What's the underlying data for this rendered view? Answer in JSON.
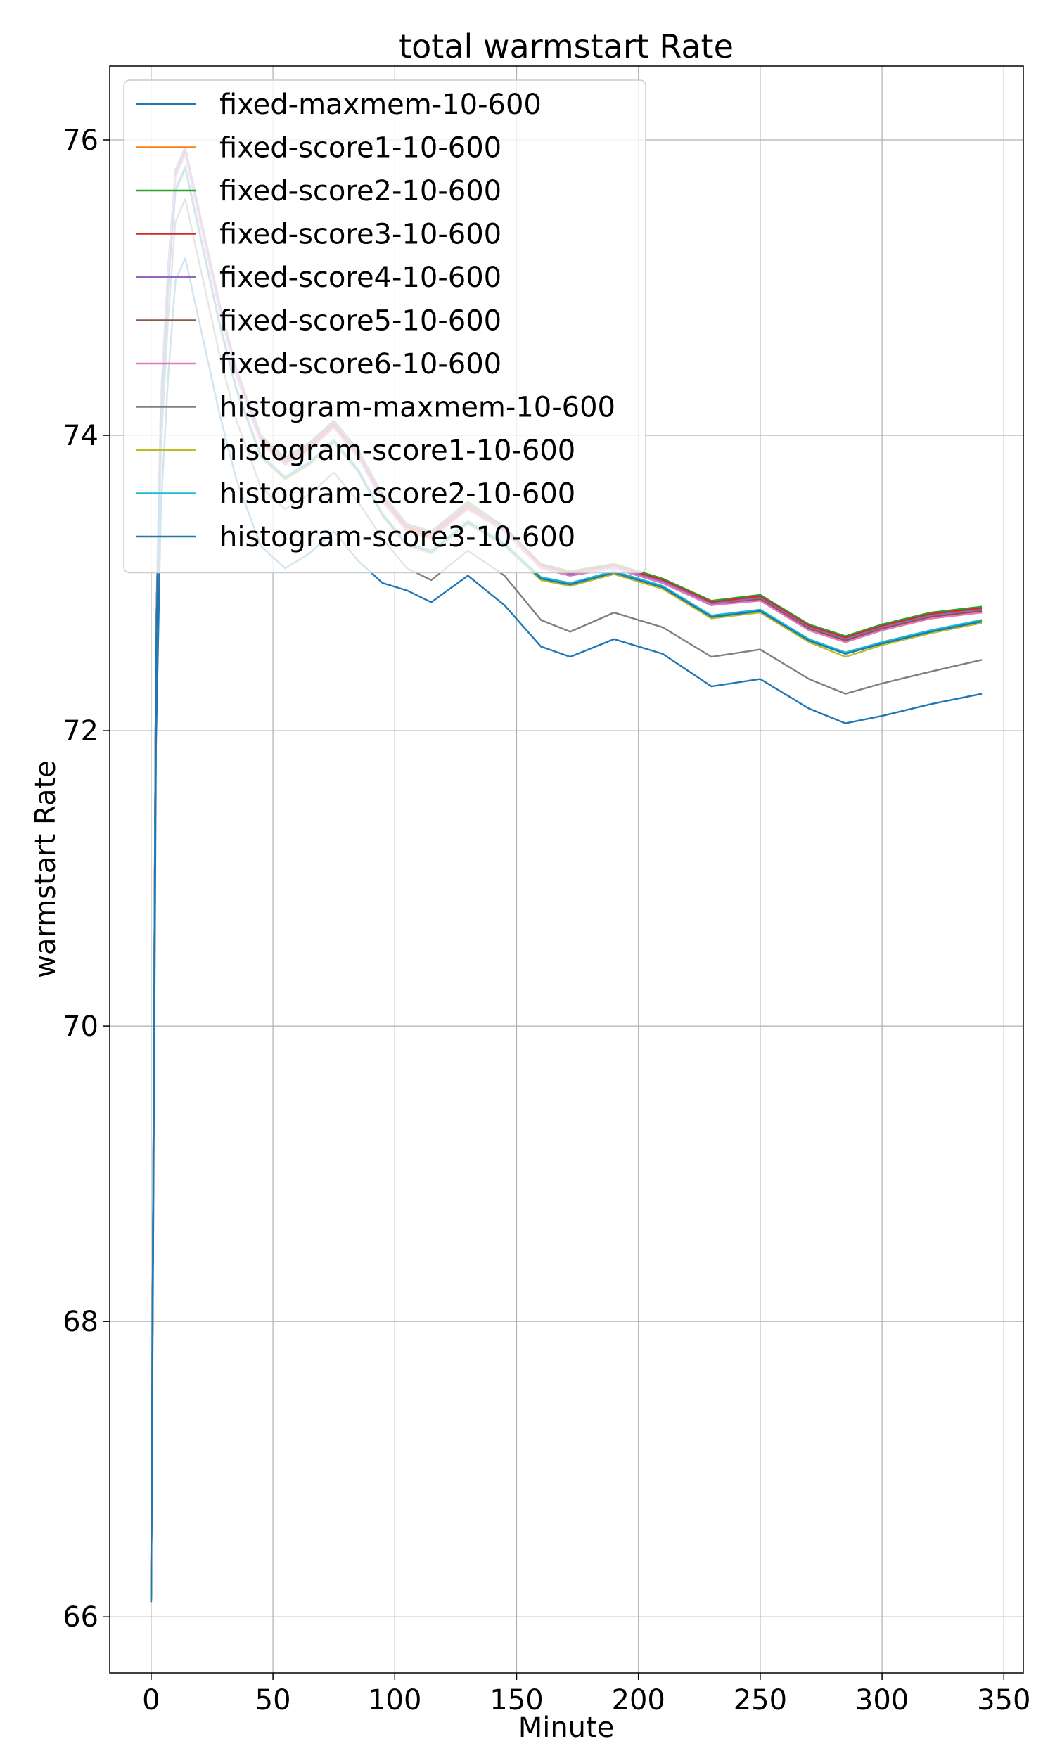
{
  "chart_data": {
    "type": "line",
    "title": "total warmstart Rate",
    "xlabel": "Minute",
    "ylabel": "warmstart Rate",
    "xlim": [
      -17,
      358
    ],
    "ylim": [
      65.62,
      76.5
    ],
    "xticks": [
      0,
      50,
      100,
      150,
      200,
      250,
      300,
      350
    ],
    "yticks": [
      66,
      68,
      70,
      72,
      74,
      76
    ],
    "grid": true,
    "legend_position": "upper left",
    "series": [
      {
        "name": "fixed-maxmem-10-600",
        "color": "#1f77b4",
        "x": [
          0,
          2,
          4,
          7,
          10,
          14,
          18,
          22,
          28,
          35,
          45,
          55,
          65,
          75,
          85,
          95,
          105,
          115,
          130,
          145,
          160,
          172,
          190,
          210,
          230,
          250,
          270,
          285,
          300,
          320,
          341
        ],
        "y": [
          66.1,
          72.6,
          74.2,
          75.1,
          75.75,
          75.9,
          75.6,
          75.3,
          74.85,
          74.4,
          73.95,
          73.8,
          73.9,
          74.05,
          73.85,
          73.55,
          73.35,
          73.3,
          73.5,
          73.35,
          73.1,
          73.05,
          73.1,
          73.0,
          72.85,
          72.9,
          72.7,
          72.62,
          72.7,
          72.78,
          72.82
        ]
      },
      {
        "name": "fixed-score1-10-600",
        "color": "#ff7f0e",
        "x": [
          0,
          2,
          4,
          7,
          10,
          14,
          18,
          22,
          28,
          35,
          45,
          55,
          65,
          75,
          85,
          95,
          105,
          115,
          130,
          145,
          160,
          172,
          190,
          210,
          230,
          250,
          270,
          285,
          300,
          320,
          341
        ],
        "y": [
          66.12,
          72.62,
          74.22,
          75.12,
          75.77,
          75.92,
          75.62,
          75.32,
          74.87,
          74.42,
          73.97,
          73.82,
          73.92,
          74.07,
          73.87,
          73.57,
          73.37,
          73.32,
          73.52,
          73.36,
          73.11,
          73.06,
          73.11,
          73.01,
          72.86,
          72.89,
          72.68,
          72.6,
          72.68,
          72.76,
          72.8
        ]
      },
      {
        "name": "fixed-score2-10-600",
        "color": "#2ca02c",
        "x": [
          0,
          2,
          4,
          7,
          10,
          14,
          18,
          22,
          28,
          35,
          45,
          55,
          65,
          75,
          85,
          95,
          105,
          115,
          130,
          145,
          160,
          172,
          190,
          210,
          230,
          250,
          270,
          285,
          300,
          320,
          341
        ],
        "y": [
          66.15,
          72.65,
          74.25,
          75.15,
          75.8,
          75.95,
          75.65,
          75.35,
          74.9,
          74.45,
          74.0,
          73.85,
          73.95,
          74.1,
          73.9,
          73.6,
          73.4,
          73.35,
          73.55,
          73.38,
          73.13,
          73.08,
          73.13,
          73.03,
          72.88,
          72.92,
          72.72,
          72.64,
          72.72,
          72.8,
          72.84
        ]
      },
      {
        "name": "fixed-score3-10-600",
        "color": "#d62728",
        "x": [
          0,
          2,
          4,
          7,
          10,
          14,
          18,
          22,
          28,
          35,
          45,
          55,
          65,
          75,
          85,
          95,
          105,
          115,
          130,
          145,
          160,
          172,
          190,
          210,
          230,
          250,
          270,
          285,
          300,
          320,
          341
        ],
        "y": [
          66.13,
          72.63,
          74.23,
          75.13,
          75.78,
          75.93,
          75.63,
          75.33,
          74.88,
          74.43,
          73.98,
          73.83,
          73.93,
          74.08,
          73.88,
          73.58,
          73.38,
          73.33,
          73.53,
          73.37,
          73.12,
          73.07,
          73.12,
          73.02,
          72.87,
          72.91,
          72.71,
          72.63,
          72.71,
          72.79,
          72.83
        ]
      },
      {
        "name": "fixed-score4-10-600",
        "color": "#9467bd",
        "x": [
          0,
          2,
          4,
          7,
          10,
          14,
          18,
          22,
          28,
          35,
          45,
          55,
          65,
          75,
          85,
          95,
          105,
          115,
          130,
          145,
          160,
          172,
          190,
          210,
          230,
          250,
          270,
          285,
          300,
          320,
          341
        ],
        "y": [
          66.14,
          72.64,
          74.24,
          75.14,
          75.79,
          75.94,
          75.64,
          75.34,
          74.89,
          74.44,
          73.99,
          73.84,
          73.94,
          74.09,
          73.89,
          73.59,
          73.39,
          73.34,
          73.54,
          73.36,
          73.11,
          73.06,
          73.11,
          73.01,
          72.86,
          72.9,
          72.7,
          72.62,
          72.7,
          72.78,
          72.82
        ]
      },
      {
        "name": "fixed-score5-10-600",
        "color": "#8c564b",
        "x": [
          0,
          2,
          4,
          7,
          10,
          14,
          18,
          22,
          28,
          35,
          45,
          55,
          65,
          75,
          85,
          95,
          105,
          115,
          130,
          145,
          160,
          172,
          190,
          210,
          230,
          250,
          270,
          285,
          300,
          320,
          341
        ],
        "y": [
          66.11,
          72.61,
          74.21,
          75.11,
          75.76,
          75.91,
          75.61,
          75.31,
          74.86,
          74.41,
          73.96,
          73.81,
          73.91,
          74.06,
          73.86,
          73.56,
          73.36,
          73.31,
          73.51,
          73.35,
          73.1,
          73.05,
          73.1,
          73.0,
          72.85,
          72.89,
          72.69,
          72.61,
          72.69,
          72.77,
          72.81
        ]
      },
      {
        "name": "fixed-score6-10-600",
        "color": "#e377c2",
        "x": [
          0,
          2,
          4,
          7,
          10,
          14,
          18,
          22,
          28,
          35,
          45,
          55,
          65,
          75,
          85,
          95,
          105,
          115,
          130,
          145,
          160,
          172,
          190,
          210,
          230,
          250,
          270,
          285,
          300,
          320,
          341
        ],
        "y": [
          66.3,
          72.6,
          74.2,
          75.1,
          75.75,
          75.9,
          75.6,
          75.3,
          74.85,
          74.4,
          73.95,
          73.8,
          73.9,
          74.05,
          73.85,
          73.55,
          73.35,
          73.3,
          73.5,
          73.35,
          73.1,
          73.05,
          73.1,
          73.0,
          72.85,
          72.88,
          72.68,
          72.6,
          72.68,
          72.76,
          72.8
        ]
      },
      {
        "name": "histogram-maxmem-10-600",
        "color": "#7f7f7f",
        "x": [
          0,
          2,
          4,
          7,
          10,
          14,
          18,
          22,
          28,
          35,
          45,
          55,
          65,
          75,
          85,
          95,
          105,
          115,
          130,
          145,
          160,
          172,
          190,
          210,
          230,
          250,
          270,
          285,
          300,
          320,
          341
        ],
        "y": [
          66.2,
          72.3,
          73.9,
          74.8,
          75.45,
          75.6,
          75.3,
          75.0,
          74.55,
          74.1,
          73.65,
          73.5,
          73.6,
          73.75,
          73.55,
          73.3,
          73.1,
          73.02,
          73.22,
          73.05,
          72.75,
          72.67,
          72.8,
          72.7,
          72.5,
          72.55,
          72.35,
          72.25,
          72.32,
          72.4,
          72.48
        ]
      },
      {
        "name": "histogram-score1-10-600",
        "color": "#bcbd22",
        "x": [
          0,
          2,
          4,
          7,
          10,
          14,
          18,
          22,
          28,
          35,
          45,
          55,
          65,
          75,
          85,
          95,
          105,
          115,
          130,
          145,
          160,
          172,
          190,
          210,
          230,
          250,
          270,
          285,
          300,
          320,
          341
        ],
        "y": [
          66.12,
          72.5,
          74.1,
          75.0,
          75.65,
          75.8,
          75.5,
          75.2,
          74.75,
          74.3,
          73.85,
          73.7,
          73.8,
          73.95,
          73.75,
          73.45,
          73.25,
          73.2,
          73.4,
          73.25,
          73.02,
          72.98,
          73.06,
          72.96,
          72.76,
          72.8,
          72.6,
          72.5,
          72.58,
          72.66,
          72.73
        ]
      },
      {
        "name": "histogram-score2-10-600",
        "color": "#17becf",
        "x": [
          0,
          2,
          4,
          7,
          10,
          14,
          18,
          22,
          28,
          35,
          45,
          55,
          65,
          75,
          85,
          95,
          105,
          115,
          130,
          145,
          160,
          172,
          190,
          210,
          230,
          250,
          270,
          285,
          300,
          320,
          341
        ],
        "y": [
          66.13,
          72.52,
          74.12,
          75.02,
          75.67,
          75.82,
          75.52,
          75.22,
          74.77,
          74.32,
          73.87,
          73.72,
          73.82,
          73.97,
          73.77,
          73.47,
          73.27,
          73.22,
          73.42,
          73.27,
          73.04,
          73.0,
          73.08,
          72.98,
          72.78,
          72.82,
          72.62,
          72.53,
          72.6,
          72.68,
          72.75
        ]
      },
      {
        "name": "histogram-score3-10-600",
        "color": "#1f77b4",
        "x": [
          0,
          2,
          4,
          7,
          10,
          14,
          18,
          22,
          28,
          35,
          45,
          55,
          65,
          75,
          85,
          95,
          105,
          115,
          130,
          145,
          160,
          172,
          190,
          210,
          230,
          250,
          270,
          285,
          300,
          320,
          341
        ],
        "y": [
          66.12,
          72.51,
          74.11,
          75.01,
          75.66,
          75.81,
          75.51,
          75.21,
          74.76,
          74.31,
          73.86,
          73.71,
          73.81,
          73.96,
          73.76,
          73.46,
          73.26,
          73.21,
          73.41,
          73.26,
          73.03,
          72.99,
          73.07,
          72.97,
          72.77,
          72.81,
          72.61,
          72.52,
          72.59,
          72.67,
          72.74
        ]
      },
      {
        "name": "",
        "color": "#1f77b4",
        "x": [
          0,
          2,
          4,
          7,
          10,
          14,
          18,
          22,
          28,
          35,
          45,
          55,
          65,
          75,
          85,
          95,
          105,
          115,
          130,
          145,
          160,
          172,
          190,
          210,
          230,
          250,
          270,
          285,
          300,
          320,
          341
        ],
        "y": [
          66.1,
          71.9,
          73.5,
          74.4,
          75.05,
          75.2,
          74.9,
          74.6,
          74.15,
          73.7,
          73.25,
          73.1,
          73.2,
          73.35,
          73.15,
          73.0,
          72.95,
          72.87,
          73.05,
          72.85,
          72.57,
          72.5,
          72.62,
          72.52,
          72.3,
          72.35,
          72.15,
          72.05,
          72.1,
          72.18,
          72.25
        ]
      }
    ]
  }
}
